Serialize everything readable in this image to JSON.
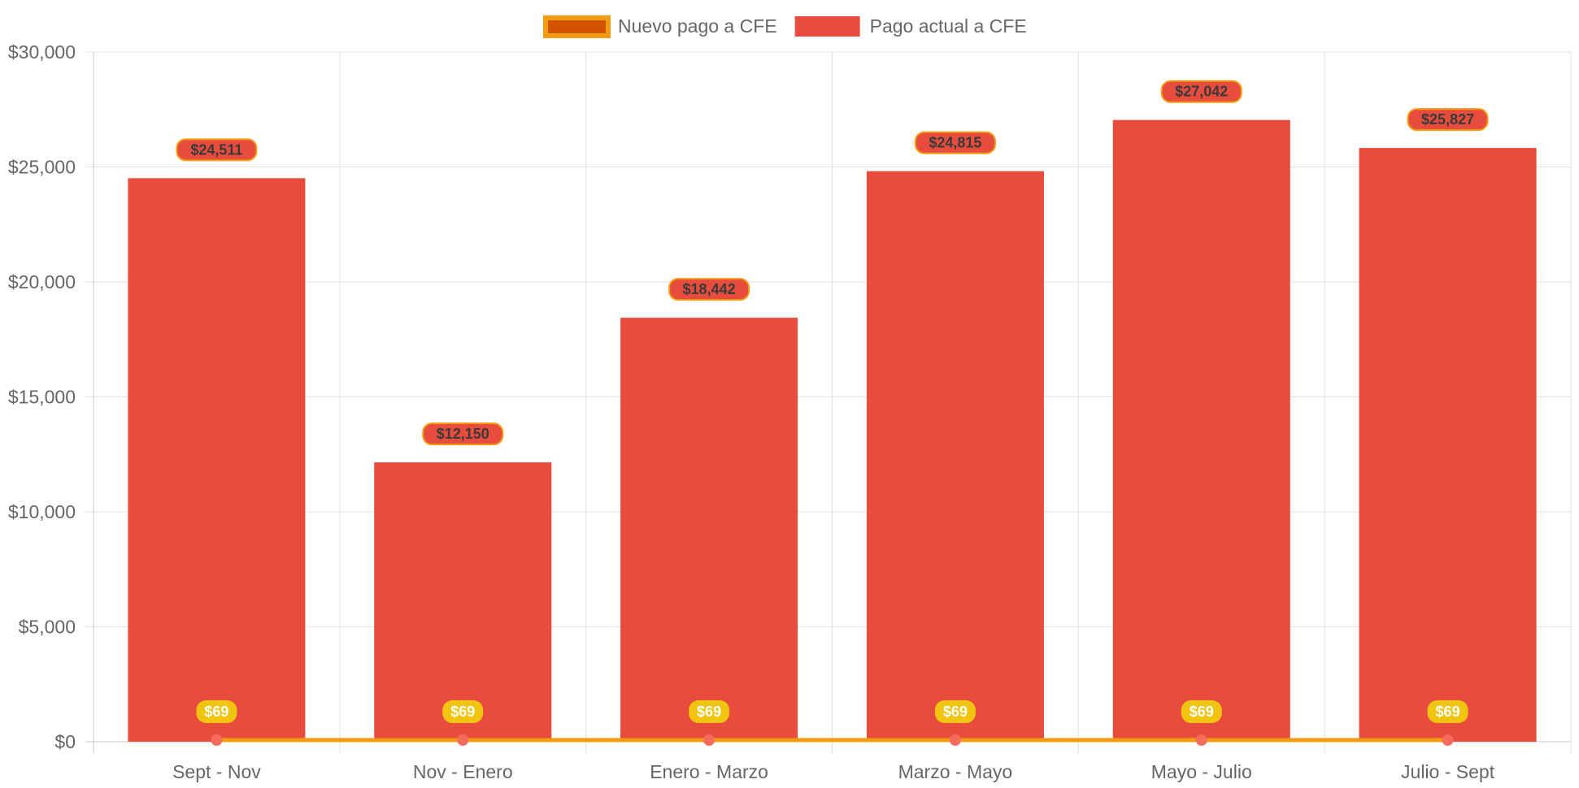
{
  "chart_data": {
    "type": "bar",
    "categories": [
      "Sept - Nov",
      "Nov - Enero",
      "Enero - Marzo",
      "Marzo - Mayo",
      "Mayo - Julio",
      "Julio - Sept"
    ],
    "series": [
      {
        "name": "Pago actual a CFE",
        "type": "bar",
        "values": [
          24511,
          12150,
          18442,
          24815,
          27042,
          25827
        ],
        "labels": [
          "$24,511",
          "$12,150",
          "$18,442",
          "$24,815",
          "$27,042",
          "$25,827"
        ],
        "color": "#e74c3c",
        "label_border_color": "#f39c12"
      },
      {
        "name": "Nuevo pago a CFE",
        "type": "line",
        "values": [
          69,
          69,
          69,
          69,
          69,
          69
        ],
        "labels": [
          "$69",
          "$69",
          "$69",
          "$69",
          "$69",
          "$69"
        ],
        "color": "#f39c12",
        "legend_fill": "#d35400",
        "point_color": "#f56c5c",
        "label_bg": "#f1c40f"
      }
    ],
    "ylim": [
      0,
      30000
    ],
    "y_ticks": [
      0,
      5000,
      10000,
      15000,
      20000,
      25000,
      30000
    ],
    "y_tick_labels": [
      "$0",
      "$5,000",
      "$10,000",
      "$15,000",
      "$20,000",
      "$25,000",
      "$30,000"
    ],
    "legend_position": "top",
    "grid": true,
    "title": "",
    "xlabel": "",
    "ylabel": ""
  }
}
